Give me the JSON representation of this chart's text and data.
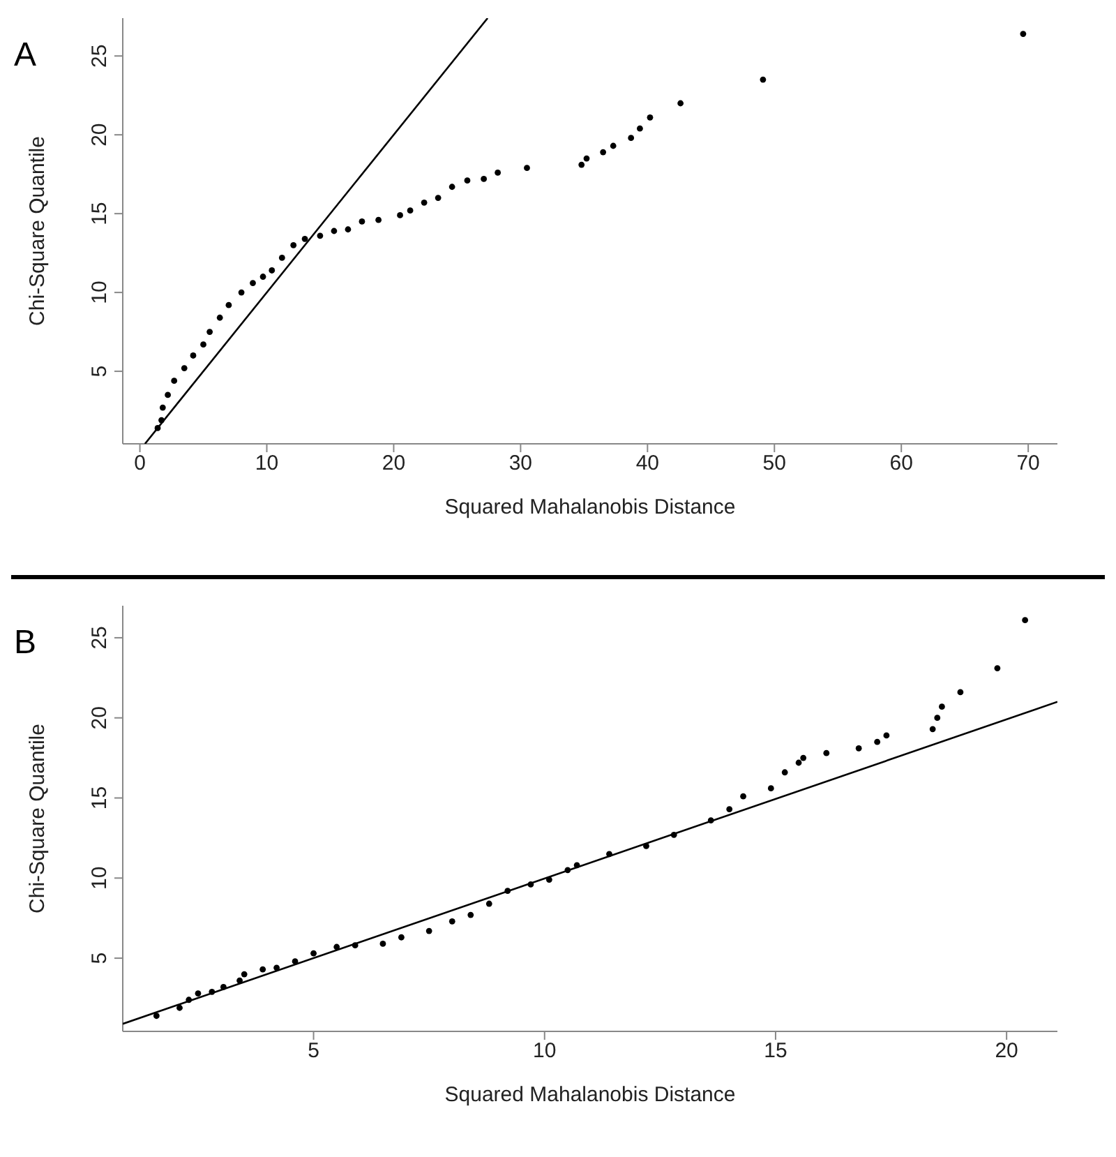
{
  "chart_data": [
    {
      "type": "scatter",
      "title": "A",
      "xlabel": "Squared Mahalanobis Distance",
      "ylabel": "Chi-Square Quantile",
      "xlim": [
        -1.35,
        72.3
      ],
      "ylim": [
        0.4,
        27.4
      ],
      "xticks": [
        0,
        10,
        20,
        30,
        40,
        50,
        60,
        70
      ],
      "yticks": [
        5,
        10,
        15,
        20,
        25
      ],
      "grid": false,
      "legend": false,
      "series": [
        {
          "type": "scatter",
          "marker": "circle",
          "color": "#000000",
          "x": [
            1.4,
            1.7,
            1.8,
            2.2,
            2.7,
            3.5,
            4.2,
            5.0,
            5.5,
            6.3,
            7.0,
            8.0,
            8.9,
            9.7,
            10.4,
            11.2,
            12.1,
            13.0,
            14.2,
            15.3,
            16.4,
            17.5,
            18.8,
            20.5,
            21.3,
            22.4,
            23.5,
            24.6,
            25.8,
            27.1,
            28.2,
            30.5,
            34.8,
            35.2,
            36.5,
            37.3,
            38.7,
            39.4,
            40.2,
            42.6,
            49.1,
            69.6
          ],
          "values": [
            1.4,
            1.9,
            2.7,
            3.5,
            4.4,
            5.2,
            6.0,
            6.7,
            7.5,
            8.4,
            9.2,
            10.0,
            10.6,
            11.0,
            11.4,
            12.2,
            13.0,
            13.4,
            13.6,
            13.9,
            14.0,
            14.5,
            14.6,
            14.9,
            15.2,
            15.7,
            16.0,
            16.7,
            17.1,
            17.2,
            17.6,
            17.9,
            18.1,
            18.5,
            18.9,
            19.3,
            19.8,
            20.4,
            21.1,
            22.0,
            23.5,
            26.4
          ]
        },
        {
          "type": "line",
          "color": "#000000",
          "x": [
            0.4,
            27.4
          ],
          "values": [
            0.4,
            27.4
          ]
        }
      ]
    },
    {
      "type": "scatter",
      "title": "B",
      "xlabel": "Squared Mahalanobis Distance",
      "ylabel": "Chi-Square Quantile",
      "xlim": [
        0.87,
        21.1
      ],
      "ylim": [
        0.43,
        27.0
      ],
      "xticks": [
        5,
        10,
        15,
        20
      ],
      "yticks": [
        5,
        10,
        15,
        20,
        25
      ],
      "grid": false,
      "legend": false,
      "series": [
        {
          "type": "scatter",
          "marker": "circle",
          "color": "#000000",
          "x": [
            1.6,
            2.1,
            2.3,
            2.5,
            2.8,
            3.05,
            3.4,
            3.5,
            3.9,
            4.2,
            4.6,
            5.0,
            5.5,
            5.9,
            6.5,
            6.9,
            7.5,
            8.0,
            8.4,
            8.8,
            9.2,
            9.7,
            10.1,
            10.5,
            10.7,
            11.4,
            12.2,
            12.8,
            13.6,
            14.0,
            14.3,
            14.9,
            15.2,
            15.5,
            15.6,
            16.1,
            16.8,
            17.2,
            17.4,
            18.4,
            18.5,
            18.6,
            19.0,
            19.8,
            20.4
          ],
          "values": [
            1.4,
            1.9,
            2.4,
            2.8,
            2.9,
            3.2,
            3.6,
            4.0,
            4.3,
            4.4,
            4.8,
            5.3,
            5.7,
            5.8,
            5.9,
            6.3,
            6.7,
            7.3,
            7.7,
            8.4,
            9.2,
            9.6,
            9.9,
            10.5,
            10.8,
            11.5,
            12.0,
            12.7,
            13.6,
            14.3,
            15.1,
            15.6,
            16.6,
            17.2,
            17.5,
            17.8,
            18.1,
            18.5,
            18.9,
            19.3,
            20.0,
            20.7,
            21.6,
            23.1,
            26.1
          ]
        },
        {
          "type": "line",
          "color": "#000000",
          "x": [
            0.87,
            21.1
          ],
          "values": [
            0.9,
            21.0
          ]
        }
      ]
    }
  ]
}
